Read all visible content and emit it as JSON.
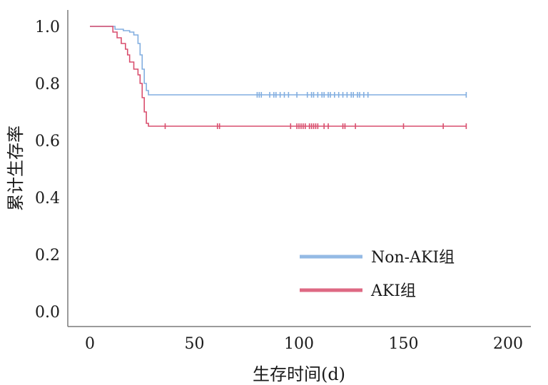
{
  "chart_data": {
    "type": "line",
    "xlabel": "生存时间(d)",
    "ylabel": "累计生存率",
    "xlim": [
      0,
      200
    ],
    "ylim": [
      0,
      1
    ],
    "xticks": [
      "0",
      "50",
      "100",
      "150",
      "200"
    ],
    "yticks": [
      "0.0",
      "0.2",
      "0.4",
      "0.6",
      "0.8",
      "1.0"
    ],
    "grid": false,
    "legend_position": "bottom-right",
    "series": [
      {
        "name": "Non-AKI组",
        "color": "#82aee0",
        "steps": [
          [
            0,
            1.0
          ],
          [
            12,
            0.99
          ],
          [
            16,
            0.985
          ],
          [
            19,
            0.98
          ],
          [
            21,
            0.97
          ],
          [
            23,
            0.94
          ],
          [
            24,
            0.9
          ],
          [
            25,
            0.85
          ],
          [
            26,
            0.8
          ],
          [
            27,
            0.775
          ],
          [
            28,
            0.76
          ],
          [
            180,
            0.76
          ]
        ],
        "censored": [
          80,
          81,
          82,
          86,
          88,
          89,
          91,
          93,
          95,
          99,
          104,
          106,
          107,
          109,
          111,
          112,
          114,
          115,
          117,
          119,
          121,
          123,
          125,
          126,
          128,
          129,
          131,
          133,
          180
        ]
      },
      {
        "name": "AKI组",
        "color": "#d94f6e",
        "steps": [
          [
            0,
            1.0
          ],
          [
            11,
            0.98
          ],
          [
            13,
            0.96
          ],
          [
            15,
            0.94
          ],
          [
            17,
            0.92
          ],
          [
            18,
            0.9
          ],
          [
            19,
            0.875
          ],
          [
            21,
            0.85
          ],
          [
            23,
            0.83
          ],
          [
            24,
            0.8
          ],
          [
            25,
            0.75
          ],
          [
            26,
            0.7
          ],
          [
            27,
            0.66
          ],
          [
            28,
            0.65
          ],
          [
            180,
            0.65
          ]
        ],
        "censored": [
          36,
          61,
          62,
          96,
          99,
          100,
          101,
          102,
          103,
          105,
          106,
          107,
          108,
          109,
          112,
          114,
          121,
          122,
          127,
          150,
          169,
          180
        ]
      }
    ]
  }
}
